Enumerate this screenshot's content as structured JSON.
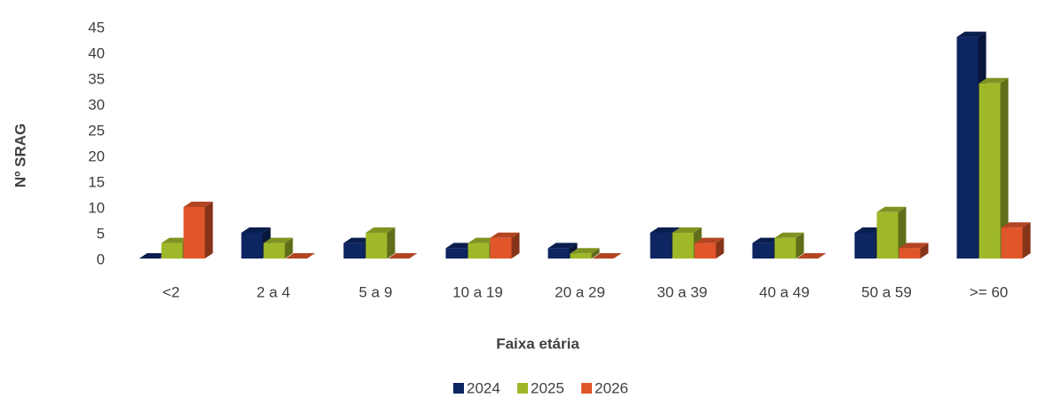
{
  "chart_data": {
    "type": "bar3d",
    "x_label": "Faixa etária",
    "y_label": "Nº SRAG",
    "categories": [
      "<2",
      "2 a 4",
      "5 a 9",
      "10 a 19",
      "20 a 29",
      "30 a 39",
      "40 a 49",
      "50 a 59",
      ">= 60"
    ],
    "series": [
      {
        "name": "2024",
        "color": "#0d2560",
        "values": [
          0,
          5,
          3,
          2,
          2,
          5,
          3,
          5,
          43
        ]
      },
      {
        "name": "2025",
        "color": "#9fb82a",
        "values": [
          3,
          3,
          5,
          3,
          1,
          5,
          4,
          9,
          34
        ]
      },
      {
        "name": "2026",
        "color": "#e0562a",
        "values": [
          10,
          0,
          0,
          4,
          0,
          3,
          0,
          2,
          6
        ]
      }
    ],
    "ylim": [
      0,
      45
    ],
    "yticks": [
      0,
      5,
      10,
      15,
      20,
      25,
      30,
      35,
      40,
      45
    ],
    "grid": false,
    "legend": "bottom"
  }
}
